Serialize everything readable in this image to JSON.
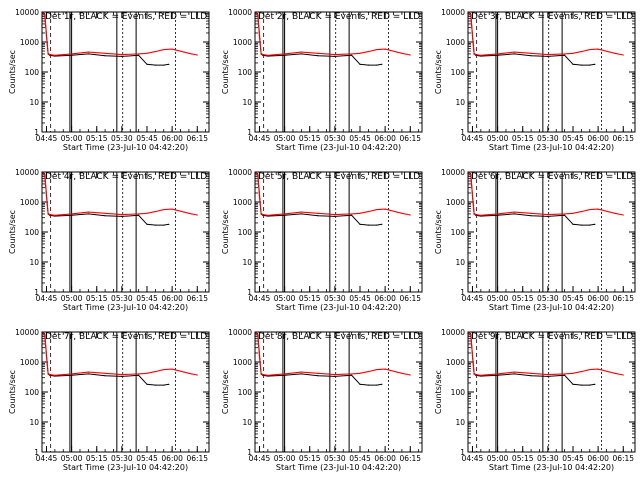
{
  "colors": {
    "events": "#000000",
    "lld": "#ff0000",
    "axes": "#000000",
    "background": "#ffffff"
  },
  "figure": {
    "rows": 3,
    "cols": 3
  },
  "chart_data": [
    {
      "type": "line",
      "title": "Det 1r, BLACK = Events, RED = LLD",
      "xlabel": "Start Time (23-Jul-10 04:42:20)",
      "ylabel": "Counts/sec",
      "x_ticks": [
        "04:45",
        "05:00",
        "05:15",
        "05:30",
        "05:45",
        "06:00",
        "06:15"
      ],
      "y_ticks": [
        "1",
        "10",
        "100",
        "1000",
        "10000"
      ],
      "y_scale": "log",
      "ylim": [
        1,
        10000
      ],
      "xlim": [
        "04:42:20",
        "06:22:00"
      ],
      "series": [
        {
          "name": "Events",
          "color": "#000000",
          "x": [
            "04:43",
            "04:44",
            "04:45",
            "04:46",
            "04:47",
            "04:50",
            "05:00",
            "05:10",
            "05:20",
            "05:30",
            "05:40",
            "05:45",
            "05:50",
            "05:55",
            "05:58"
          ],
          "y": [
            9500,
            8000,
            1600,
            400,
            360,
            340,
            360,
            400,
            350,
            330,
            360,
            180,
            170,
            170,
            180
          ]
        },
        {
          "name": "LLD",
          "color": "#ff0000",
          "x": [
            "04:43",
            "04:44",
            "04:45",
            "04:46",
            "04:47",
            "04:50",
            "05:00",
            "05:10",
            "05:20",
            "05:30",
            "05:40",
            "05:45",
            "05:50",
            "05:55",
            "06:00",
            "06:10",
            "06:15"
          ],
          "y": [
            9500,
            8000,
            1700,
            420,
            380,
            360,
            400,
            460,
            420,
            380,
            400,
            420,
            480,
            560,
            580,
            420,
            370
          ]
        }
      ]
    },
    {
      "type": "line",
      "title": "Det 2r, BLACK = Events, RED = LLD",
      "xlabel": "Start Time (23-Jul-10 04:42:20)",
      "ylabel": "Counts/sec",
      "x_ticks": [
        "04:45",
        "05:00",
        "05:15",
        "05:30",
        "05:45",
        "06:00",
        "06:15"
      ],
      "y_ticks": [
        "1",
        "10",
        "100",
        "1000",
        "10000"
      ],
      "y_scale": "log",
      "ylim": [
        1,
        10000
      ],
      "xlim": [
        "04:42:20",
        "06:22:00"
      ],
      "series": [
        {
          "name": "Events",
          "color": "#000000",
          "x": [
            "04:43",
            "04:44",
            "04:45",
            "04:46",
            "04:47",
            "04:50",
            "05:00",
            "05:10",
            "05:20",
            "05:30",
            "05:40",
            "05:45",
            "05:50",
            "05:55",
            "05:58"
          ],
          "y": [
            9500,
            8000,
            1600,
            400,
            360,
            340,
            360,
            400,
            350,
            330,
            360,
            180,
            170,
            170,
            180
          ]
        },
        {
          "name": "LLD",
          "color": "#ff0000",
          "x": [
            "04:43",
            "04:44",
            "04:45",
            "04:46",
            "04:47",
            "04:50",
            "05:00",
            "05:10",
            "05:20",
            "05:30",
            "05:40",
            "05:45",
            "05:50",
            "05:55",
            "06:00",
            "06:10",
            "06:15"
          ],
          "y": [
            9500,
            8000,
            1700,
            420,
            380,
            360,
            400,
            460,
            420,
            380,
            400,
            420,
            480,
            560,
            580,
            420,
            370
          ]
        }
      ]
    },
    {
      "type": "line",
      "title": "Det 3r, BLACK = Events, RED = LLD",
      "xlabel": "Start Time (23-Jul-10 04:42:20)",
      "ylabel": "Counts/sec",
      "x_ticks": [
        "04:45",
        "05:00",
        "05:15",
        "05:30",
        "05:45",
        "06:00",
        "06:15"
      ],
      "y_ticks": [
        "1",
        "10",
        "100",
        "1000",
        "10000"
      ],
      "y_scale": "log",
      "ylim": [
        1,
        10000
      ],
      "xlim": [
        "04:42:20",
        "06:22:00"
      ],
      "series": [
        {
          "name": "Events",
          "color": "#000000",
          "x": [
            "04:43",
            "04:44",
            "04:45",
            "04:46",
            "04:47",
            "04:50",
            "05:00",
            "05:10",
            "05:20",
            "05:30",
            "05:40",
            "05:45",
            "05:50",
            "05:55",
            "05:58"
          ],
          "y": [
            9500,
            8000,
            1600,
            400,
            360,
            340,
            360,
            400,
            350,
            330,
            360,
            180,
            170,
            170,
            180
          ]
        },
        {
          "name": "LLD",
          "color": "#ff0000",
          "x": [
            "04:43",
            "04:44",
            "04:45",
            "04:46",
            "04:47",
            "04:50",
            "05:00",
            "05:10",
            "05:20",
            "05:30",
            "05:40",
            "05:45",
            "05:50",
            "05:55",
            "06:00",
            "06:10",
            "06:15"
          ],
          "y": [
            9500,
            8000,
            1700,
            420,
            380,
            360,
            400,
            460,
            420,
            380,
            400,
            420,
            480,
            560,
            580,
            420,
            370
          ]
        }
      ]
    },
    {
      "type": "line",
      "title": "Det 4r, BLACK = Events, RED = LLD",
      "xlabel": "Start Time (23-Jul-10 04:42:20)",
      "ylabel": "Counts/sec",
      "x_ticks": [
        "04:45",
        "05:00",
        "05:15",
        "05:30",
        "05:45",
        "06:00",
        "06:15"
      ],
      "y_ticks": [
        "1",
        "10",
        "100",
        "1000",
        "10000"
      ],
      "y_scale": "log",
      "ylim": [
        1,
        10000
      ],
      "xlim": [
        "04:42:20",
        "06:22:00"
      ],
      "series": [
        {
          "name": "Events",
          "color": "#000000",
          "x": [
            "04:43",
            "04:44",
            "04:45",
            "04:46",
            "04:47",
            "04:50",
            "05:00",
            "05:10",
            "05:20",
            "05:30",
            "05:40",
            "05:45",
            "05:50",
            "05:55",
            "05:58"
          ],
          "y": [
            9500,
            8000,
            1600,
            400,
            360,
            340,
            360,
            400,
            350,
            330,
            360,
            180,
            170,
            170,
            180
          ]
        },
        {
          "name": "LLD",
          "color": "#ff0000",
          "x": [
            "04:43",
            "04:44",
            "04:45",
            "04:46",
            "04:47",
            "04:50",
            "05:00",
            "05:10",
            "05:20",
            "05:30",
            "05:40",
            "05:45",
            "05:50",
            "05:55",
            "06:00",
            "06:10",
            "06:15"
          ],
          "y": [
            9500,
            8000,
            1700,
            420,
            380,
            360,
            400,
            460,
            420,
            380,
            400,
            420,
            480,
            560,
            580,
            420,
            370
          ]
        }
      ]
    },
    {
      "type": "line",
      "title": "Det 5r, BLACK = Events, RED = LLD",
      "xlabel": "Start Time (23-Jul-10 04:42:20)",
      "ylabel": "Counts/sec",
      "x_ticks": [
        "04:45",
        "05:00",
        "05:15",
        "05:30",
        "05:45",
        "06:00",
        "06:15"
      ],
      "y_ticks": [
        "1",
        "10",
        "100",
        "1000",
        "10000"
      ],
      "y_scale": "log",
      "ylim": [
        1,
        10000
      ],
      "xlim": [
        "04:42:20",
        "06:22:00"
      ],
      "series": [
        {
          "name": "Events",
          "color": "#000000",
          "x": [
            "04:43",
            "04:44",
            "04:45",
            "04:46",
            "04:47",
            "04:50",
            "05:00",
            "05:10",
            "05:20",
            "05:30",
            "05:40",
            "05:45",
            "05:50",
            "05:55",
            "05:58"
          ],
          "y": [
            9500,
            8000,
            1600,
            400,
            360,
            340,
            360,
            400,
            350,
            330,
            360,
            180,
            170,
            170,
            180
          ]
        },
        {
          "name": "LLD",
          "color": "#ff0000",
          "x": [
            "04:43",
            "04:44",
            "04:45",
            "04:46",
            "04:47",
            "04:50",
            "05:00",
            "05:10",
            "05:20",
            "05:30",
            "05:40",
            "05:45",
            "05:50",
            "05:55",
            "06:00",
            "06:10",
            "06:15"
          ],
          "y": [
            9500,
            8000,
            1700,
            420,
            380,
            360,
            400,
            460,
            420,
            380,
            400,
            420,
            480,
            560,
            580,
            420,
            370
          ]
        }
      ]
    },
    {
      "type": "line",
      "title": "Det 6r, BLACK = Events, RED = LLD",
      "xlabel": "Start Time (23-Jul-10 04:42:20)",
      "ylabel": "Counts/sec",
      "x_ticks": [
        "04:45",
        "05:00",
        "05:15",
        "05:30",
        "05:45",
        "06:00",
        "06:15"
      ],
      "y_ticks": [
        "1",
        "10",
        "100",
        "1000",
        "10000"
      ],
      "y_scale": "log",
      "ylim": [
        1,
        10000
      ],
      "xlim": [
        "04:42:20",
        "06:22:00"
      ],
      "series": [
        {
          "name": "Events",
          "color": "#000000",
          "x": [
            "04:43",
            "04:44",
            "04:45",
            "04:46",
            "04:47",
            "04:50",
            "05:00",
            "05:10",
            "05:20",
            "05:30",
            "05:40",
            "05:45",
            "05:50",
            "05:55",
            "05:58"
          ],
          "y": [
            9500,
            8000,
            1600,
            400,
            360,
            340,
            360,
            400,
            350,
            330,
            360,
            180,
            170,
            170,
            180
          ]
        },
        {
          "name": "LLD",
          "color": "#ff0000",
          "x": [
            "04:43",
            "04:44",
            "04:45",
            "04:46",
            "04:47",
            "04:50",
            "05:00",
            "05:10",
            "05:20",
            "05:30",
            "05:40",
            "05:45",
            "05:50",
            "05:55",
            "06:00",
            "06:10",
            "06:15"
          ],
          "y": [
            9500,
            8000,
            1700,
            420,
            380,
            360,
            400,
            460,
            420,
            380,
            400,
            420,
            480,
            560,
            580,
            420,
            370
          ]
        }
      ]
    },
    {
      "type": "line",
      "title": "Det 7r, BLACK = Events, RED = LLD",
      "xlabel": "Start Time (23-Jul-10 04:42:20)",
      "ylabel": "Counts/sec",
      "x_ticks": [
        "04:45",
        "05:00",
        "05:15",
        "05:30",
        "05:45",
        "06:00",
        "06:15"
      ],
      "y_ticks": [
        "1",
        "10",
        "100",
        "1000",
        "10000"
      ],
      "y_scale": "log",
      "ylim": [
        1,
        10000
      ],
      "xlim": [
        "04:42:20",
        "06:22:00"
      ],
      "series": [
        {
          "name": "Events",
          "color": "#000000",
          "x": [
            "04:43",
            "04:44",
            "04:45",
            "04:46",
            "04:47",
            "04:50",
            "05:00",
            "05:10",
            "05:20",
            "05:30",
            "05:40",
            "05:45",
            "05:50",
            "05:55",
            "05:58"
          ],
          "y": [
            9500,
            8000,
            1600,
            400,
            360,
            340,
            360,
            400,
            350,
            330,
            360,
            180,
            170,
            170,
            180
          ]
        },
        {
          "name": "LLD",
          "color": "#ff0000",
          "x": [
            "04:43",
            "04:44",
            "04:45",
            "04:46",
            "04:47",
            "04:50",
            "05:00",
            "05:10",
            "05:20",
            "05:30",
            "05:40",
            "05:45",
            "05:50",
            "05:55",
            "06:00",
            "06:10",
            "06:15"
          ],
          "y": [
            9500,
            8000,
            1700,
            420,
            380,
            360,
            400,
            460,
            420,
            380,
            400,
            420,
            480,
            560,
            580,
            420,
            370
          ]
        }
      ]
    },
    {
      "type": "line",
      "title": "Det 8r, BLACK = Events, RED = LLD",
      "xlabel": "Start Time (23-Jul-10 04:42:20)",
      "ylabel": "Counts/sec",
      "x_ticks": [
        "04:45",
        "05:00",
        "05:15",
        "05:30",
        "05:45",
        "06:00",
        "06:15"
      ],
      "y_ticks": [
        "1",
        "10",
        "100",
        "1000",
        "10000"
      ],
      "y_scale": "log",
      "ylim": [
        1,
        10000
      ],
      "xlim": [
        "04:42:20",
        "06:22:00"
      ],
      "series": [
        {
          "name": "Events",
          "color": "#000000",
          "x": [
            "04:43",
            "04:44",
            "04:45",
            "04:46",
            "04:47",
            "04:50",
            "05:00",
            "05:10",
            "05:20",
            "05:30",
            "05:40",
            "05:45",
            "05:50",
            "05:55",
            "05:58"
          ],
          "y": [
            9500,
            8000,
            1600,
            400,
            360,
            340,
            360,
            400,
            350,
            330,
            360,
            180,
            170,
            170,
            180
          ]
        },
        {
          "name": "LLD",
          "color": "#ff0000",
          "x": [
            "04:43",
            "04:44",
            "04:45",
            "04:46",
            "04:47",
            "04:50",
            "05:00",
            "05:10",
            "05:20",
            "05:30",
            "05:40",
            "05:45",
            "05:50",
            "05:55",
            "06:00",
            "06:10",
            "06:15"
          ],
          "y": [
            9500,
            8000,
            1700,
            420,
            380,
            360,
            400,
            460,
            420,
            380,
            400,
            420,
            480,
            560,
            580,
            420,
            370
          ]
        }
      ]
    },
    {
      "type": "line",
      "title": "Det 9r, BLACK = Events, RED = LLD",
      "xlabel": "Start Time (23-Jul-10 04:42:20)",
      "ylabel": "Counts/sec",
      "x_ticks": [
        "04:45",
        "05:00",
        "05:15",
        "05:30",
        "05:45",
        "06:00",
        "06:15"
      ],
      "y_ticks": [
        "1",
        "10",
        "100",
        "1000",
        "10000"
      ],
      "y_scale": "log",
      "ylim": [
        1,
        10000
      ],
      "xlim": [
        "04:42:20",
        "06:22:00"
      ],
      "series": [
        {
          "name": "Events",
          "color": "#000000",
          "x": [
            "04:43",
            "04:44",
            "04:45",
            "04:46",
            "04:47",
            "04:50",
            "05:00",
            "05:10",
            "05:20",
            "05:30",
            "05:40",
            "05:45",
            "05:50",
            "05:55",
            "05:58"
          ],
          "y": [
            9500,
            8000,
            1600,
            400,
            360,
            340,
            360,
            400,
            350,
            330,
            360,
            180,
            170,
            170,
            180
          ]
        },
        {
          "name": "LLD",
          "color": "#ff0000",
          "x": [
            "04:43",
            "04:44",
            "04:45",
            "04:46",
            "04:47",
            "04:50",
            "05:00",
            "05:10",
            "05:20",
            "05:30",
            "05:40",
            "05:45",
            "05:50",
            "05:55",
            "06:00",
            "06:10",
            "06:15"
          ],
          "y": [
            9500,
            8000,
            1700,
            420,
            380,
            360,
            400,
            460,
            420,
            380,
            400,
            420,
            480,
            560,
            580,
            420,
            370
          ]
        }
      ]
    }
  ]
}
